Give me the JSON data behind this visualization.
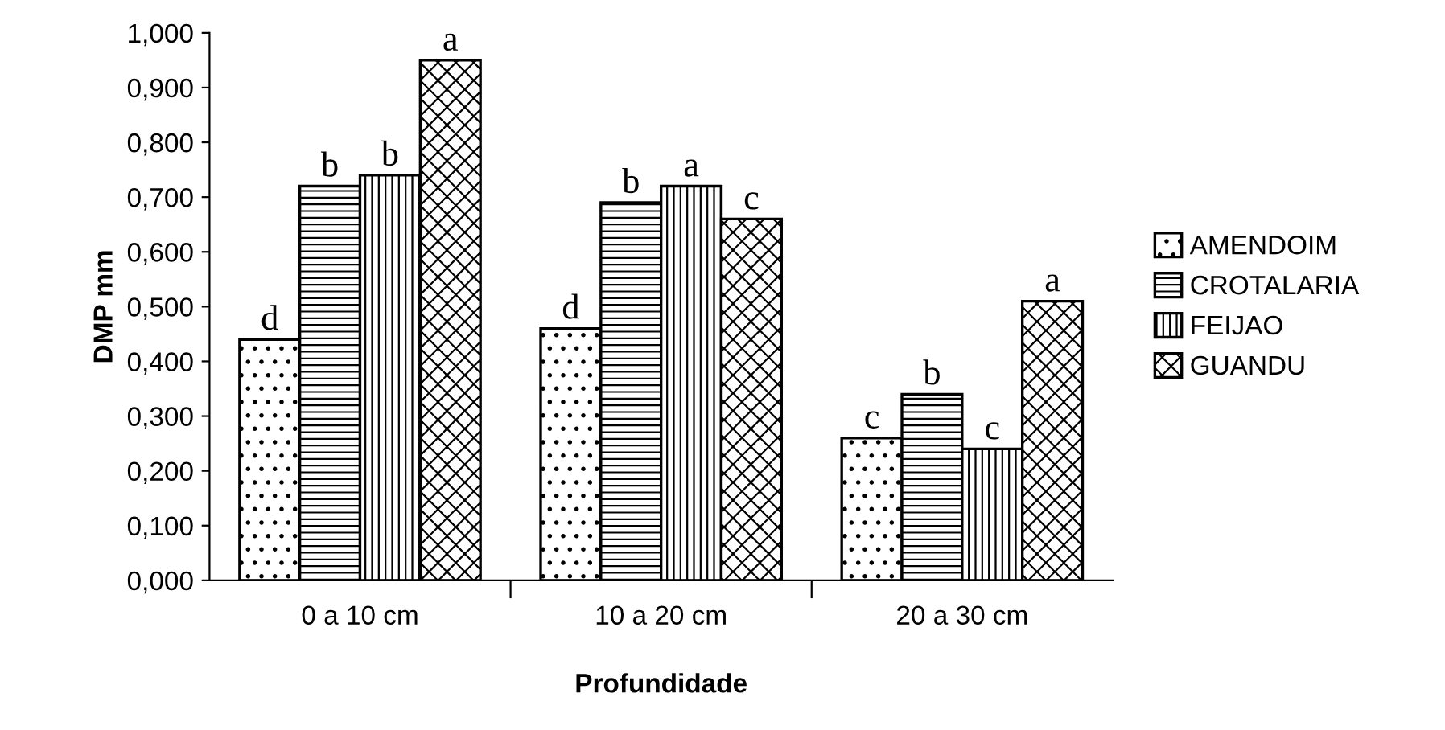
{
  "chart_data": {
    "type": "bar",
    "xlabel": "Profundidade",
    "ylabel": "DMP mm",
    "categories": [
      "0 a 10 cm",
      "10 a 20 cm",
      "20 a 30 cm"
    ],
    "series": [
      {
        "name": "AMENDOIM",
        "color": "#000000",
        "values": [
          0.44,
          0.46,
          0.26
        ]
      },
      {
        "name": "CROTALARIA",
        "color": "#000000",
        "values": [
          0.72,
          0.69,
          0.34
        ]
      },
      {
        "name": "FEIJAO",
        "color": "#000000",
        "values": [
          0.74,
          0.72,
          0.24
        ]
      },
      {
        "name": "GUANDU",
        "color": "#000000",
        "values": [
          0.95,
          0.66,
          0.51
        ]
      }
    ],
    "ylim": [
      0,
      1
    ],
    "yticks": [
      {
        "value": 0,
        "label": "0,000"
      },
      {
        "value": 0.1,
        "label": "0,100"
      },
      {
        "value": 0.2,
        "label": "0,200"
      },
      {
        "value": 0.3,
        "label": "0,300"
      },
      {
        "value": 0.4,
        "label": "0,400"
      },
      {
        "value": 0.5,
        "label": "0,500"
      },
      {
        "value": 0.6,
        "label": "0,600"
      },
      {
        "value": 0.7,
        "label": "0,700"
      },
      {
        "value": 0.8,
        "label": "0,800"
      },
      {
        "value": 0.9,
        "label": "0,900"
      },
      {
        "value": 1,
        "label": "1,000"
      }
    ],
    "annotations": [
      "d",
      "b",
      "b",
      "a",
      "d",
      "b",
      "a",
      "c",
      "c",
      "b",
      "c",
      "a"
    ],
    "grid": false,
    "legend": "right"
  }
}
